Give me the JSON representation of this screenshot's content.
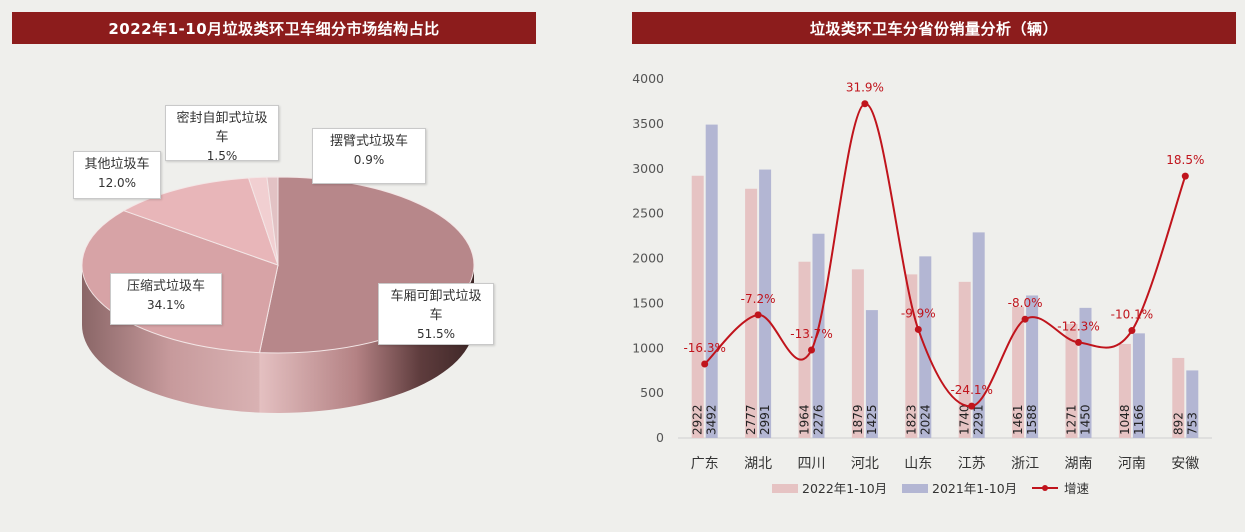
{
  "left_panel": {
    "title": "2022年1-10月垃圾类环卫车细分市场结构占比"
  },
  "right_panel": {
    "title": "垃圾类环卫车分省份销量分析（辆）"
  },
  "chart_data": [
    {
      "type": "pie",
      "title": "2022年1-10月垃圾类环卫车细分市场结构占比",
      "slices": [
        {
          "label": "车厢可卸式垃圾车",
          "value": 51.5,
          "display": "51.5%",
          "color": "#b7878a"
        },
        {
          "label": "压缩式垃圾车",
          "value": 34.1,
          "display": "34.1%",
          "color": "#d7a3a6"
        },
        {
          "label": "其他垃圾车",
          "value": 12.0,
          "display": "12.0%",
          "color": "#e8b6b9"
        },
        {
          "label": "密封自卸式垃圾车",
          "value": 1.5,
          "display": "1.5%",
          "color": "#f1cfd1"
        },
        {
          "label": "摆臂式垃圾车",
          "value": 0.9,
          "display": "0.9%",
          "color": "#e2c2c4"
        }
      ]
    },
    {
      "type": "bar",
      "title": "垃圾类环卫车分省份销量分析（辆）",
      "categories": [
        "广东",
        "湖北",
        "四川",
        "河北",
        "山东",
        "江苏",
        "浙江",
        "湖南",
        "河南",
        "安徽"
      ],
      "ylim": [
        0,
        4000
      ],
      "yticks": [
        0,
        500,
        1000,
        1500,
        2000,
        2500,
        3000,
        3500,
        4000
      ],
      "series": [
        {
          "name": "2022年1-10月",
          "color": "#e6c3c3",
          "values": [
            2922,
            2777,
            1964,
            1879,
            1823,
            1740,
            1461,
            1271,
            1048,
            892
          ]
        },
        {
          "name": "2021年1-10月",
          "color": "#b3b6d3",
          "values": [
            3492,
            2991,
            2276,
            1425,
            2024,
            2291,
            1588,
            1450,
            1166,
            753
          ]
        }
      ],
      "growth": {
        "name": "增速",
        "color": "#c0141c",
        "values": [
          -16.3,
          -7.2,
          -13.7,
          31.9,
          -9.9,
          -24.1,
          -8.0,
          -12.3,
          -10.1,
          18.5
        ],
        "labels": [
          "-16.3%",
          "-7.2%",
          "-13.7%",
          "31.9%",
          "-9.9%",
          "-24.1%",
          "-8.0%",
          "-12.3%",
          "-10.1%",
          "18.5%"
        ]
      },
      "grid": false,
      "legend_position": "bottom"
    }
  ]
}
